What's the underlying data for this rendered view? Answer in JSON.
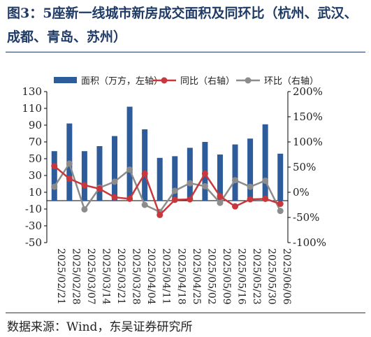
{
  "title": "图3：5座新一线城市新房成交面积及同环比（杭州、武汉、成都、青岛、苏州）",
  "source": "数据来源：Wind，东吴证券研究所",
  "colors": {
    "bar": "#2e5b9a",
    "yoy": "#c8373b",
    "mom": "#8c8c8c",
    "title": "#1f3b66"
  },
  "chart_data": {
    "type": "bar",
    "categories": [
      "2025/02/21",
      "2025/02/28",
      "2025/03/07",
      "2025/03/14",
      "2025/03/21",
      "2025/03/28",
      "2025/04/04",
      "2025/04/11",
      "2025/04/18",
      "2025/04/25",
      "2025/05/02",
      "2025/05/09",
      "2025/05/16",
      "2025/05/23",
      "2025/05/30",
      "2025/06/06"
    ],
    "series": [
      {
        "name": "面积（万方，左轴）",
        "type": "bar",
        "axis": "left",
        "values": [
          59,
          92,
          59,
          65,
          77,
          112,
          85,
          51,
          53,
          63,
          70,
          55,
          67,
          74,
          91,
          56
        ]
      },
      {
        "name": "同比（右轴）",
        "type": "line",
        "axis": "right",
        "values": [
          52,
          27,
          14,
          7,
          -10,
          -13,
          37,
          -45,
          -15,
          -14,
          37,
          -8,
          -28,
          -14,
          -13,
          -23
        ]
      },
      {
        "name": "环比（右轴）",
        "type": "line",
        "axis": "right",
        "values": [
          11,
          57,
          -34,
          9,
          21,
          45,
          -25,
          -39,
          3,
          18,
          12,
          -21,
          24,
          11,
          23,
          -37
        ]
      }
    ],
    "y_left": {
      "min": -50,
      "max": 130,
      "ticks": [
        "130",
        "110",
        "90",
        "70",
        "50",
        "30",
        "10",
        "-10",
        "-30",
        "-50"
      ]
    },
    "y_right": {
      "min": -100,
      "max": 200,
      "ticks": [
        "200%",
        "150%",
        "100%",
        "50%",
        "0%",
        "-50%",
        "-100%"
      ]
    },
    "legend": "top",
    "grid": false
  }
}
